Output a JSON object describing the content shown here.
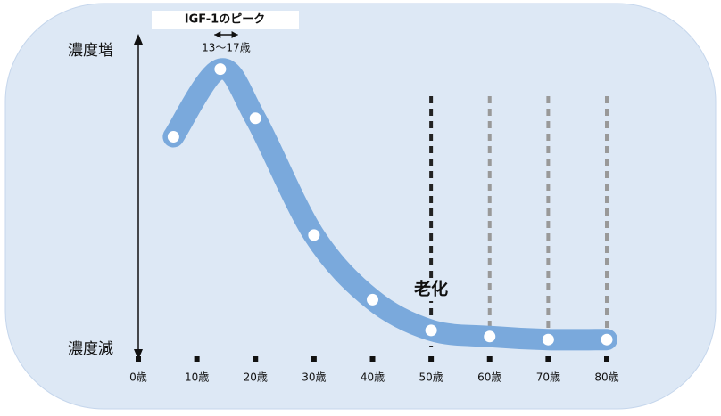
{
  "chart_data": {
    "type": "line",
    "title": "IGF-1のピーク",
    "peak_label": "13〜17歳",
    "peak_range": [
      13,
      17
    ],
    "y_top_label": "濃度増",
    "y_bottom_label": "濃度減",
    "annotation": "老化",
    "annotation_x": 50,
    "x": [
      6,
      14,
      20,
      30,
      40,
      50,
      60,
      70,
      80
    ],
    "series": [
      {
        "color": "#7aa9dc",
        "values": [
          70,
          92,
          76,
          38,
          17,
          7,
          5,
          4,
          4
        ]
      }
    ],
    "xlim": [
      0,
      80
    ],
    "ylim": [
      0,
      100
    ],
    "xticks": [
      {
        "value": 0,
        "label": "0歳"
      },
      {
        "value": 10,
        "label": "10歳"
      },
      {
        "value": 20,
        "label": "20歳"
      },
      {
        "value": 30,
        "label": "30歳"
      },
      {
        "value": 40,
        "label": "40歳"
      },
      {
        "value": 50,
        "label": "50歳"
      },
      {
        "value": 60,
        "label": "60歳"
      },
      {
        "value": 70,
        "label": "70歳"
      },
      {
        "value": 80,
        "label": "80歳"
      }
    ],
    "vlines": [
      {
        "x": 50,
        "color": "#222222"
      },
      {
        "x": 60,
        "color": "#999999"
      },
      {
        "x": 70,
        "color": "#999999"
      },
      {
        "x": 80,
        "color": "#999999"
      }
    ]
  }
}
